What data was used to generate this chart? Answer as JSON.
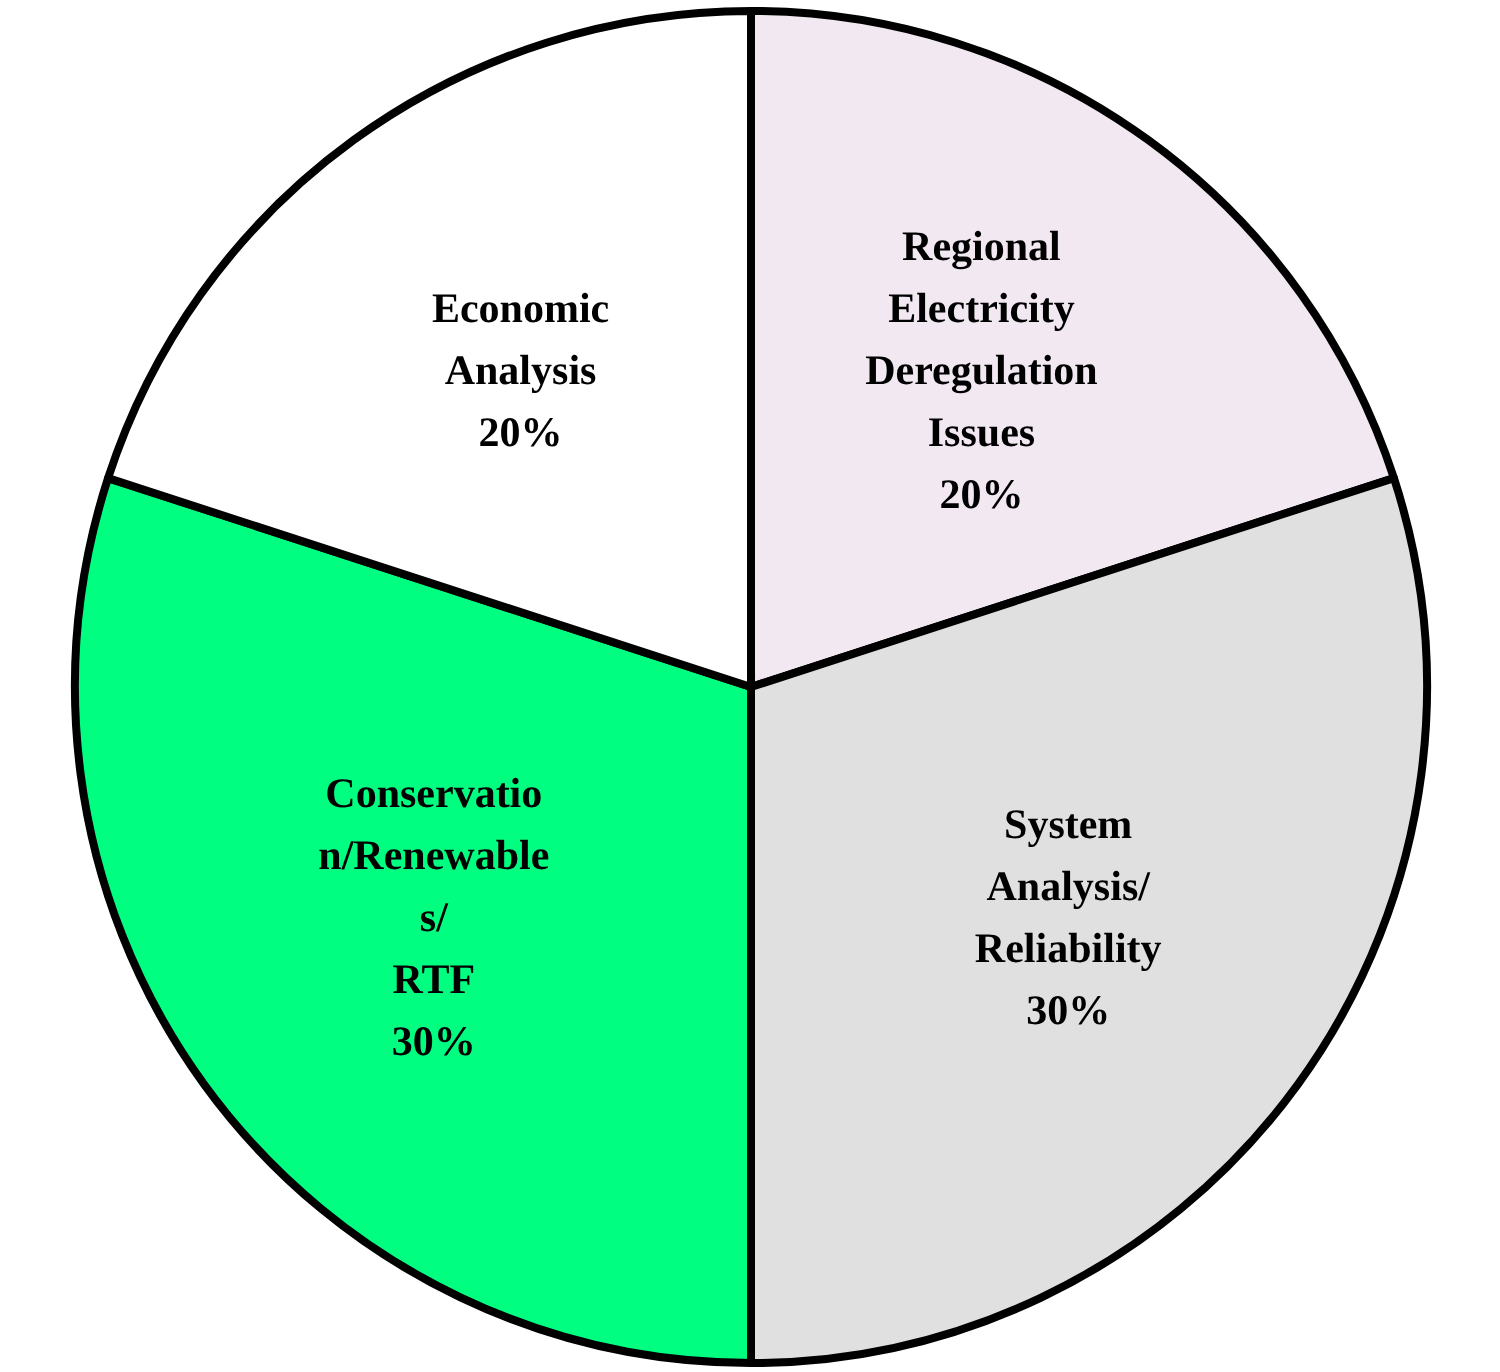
{
  "chart_data": {
    "type": "pie",
    "categories": [
      "Regional\nElectricity\nDeregulation\nIssues",
      "System\nAnalysis/\nReliability",
      "Conservatio\nn/Renewable\ns/\nRTF",
      "Economic\nAnalysis"
    ],
    "values": [
      20,
      30,
      30,
      20
    ],
    "colors": [
      "#f2e8f2",
      "#e0e0e0",
      "#00ff80",
      "#ffffff"
    ],
    "value_labels": [
      "20%",
      "30%",
      "30%",
      "20%"
    ]
  }
}
